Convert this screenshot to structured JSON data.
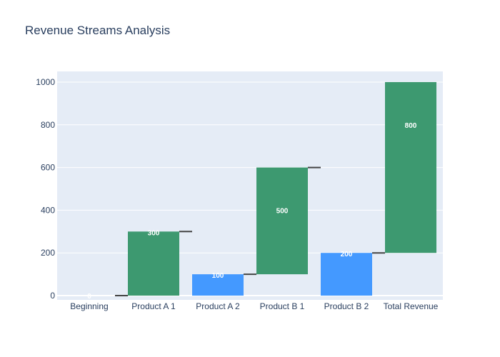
{
  "chart_data": {
    "type": "waterfall",
    "title": "Revenue Streams Analysis",
    "xlabel": "",
    "ylabel": "",
    "ylim": [
      -20,
      1050
    ],
    "yticks": [
      0,
      200,
      400,
      600,
      800,
      1000
    ],
    "grid": true,
    "categories": [
      "Beginning",
      "Product A 1",
      "Product A 2",
      "Product B 1",
      "Product B 2",
      "Total Revenue"
    ],
    "bars": [
      {
        "category": "Beginning",
        "base": 0,
        "top": 0,
        "label": "0",
        "kind": "start"
      },
      {
        "category": "Product A 1",
        "base": 0,
        "top": 300,
        "label": "300",
        "kind": "increase"
      },
      {
        "category": "Product A 2",
        "base": 0,
        "top": 100,
        "label": "100",
        "kind": "decrease"
      },
      {
        "category": "Product B 1",
        "base": 100,
        "top": 600,
        "label": "500",
        "kind": "increase"
      },
      {
        "category": "Product B 2",
        "base": 0,
        "top": 200,
        "label": "200",
        "kind": "decrease"
      },
      {
        "category": "Total Revenue",
        "base": 200,
        "top": 1000,
        "label": "800",
        "kind": "increase"
      }
    ],
    "colors": {
      "increase": "#3d9970",
      "decrease": "#4499ff",
      "connector": "#444444",
      "plot_bg": "#e5ecf6",
      "grid": "#ffffff"
    }
  }
}
